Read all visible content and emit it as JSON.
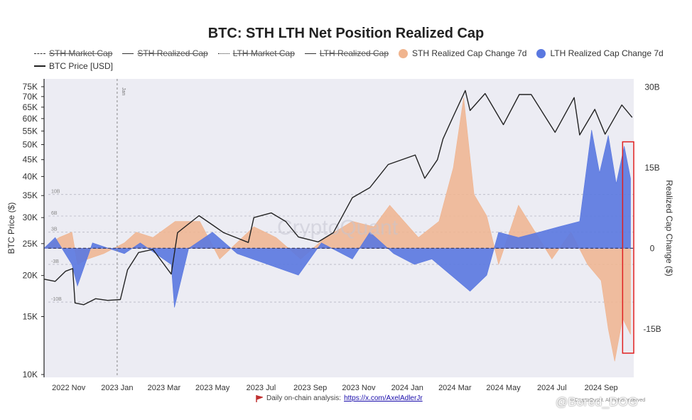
{
  "chart_data": {
    "type": "line",
    "title": "BTC: STH LTH Net Position Realized Cap",
    "ylabel_left": "BTC Price ($)",
    "ylabel_right": "Realized Cap Change ($)",
    "y_left_scale": "log",
    "y_left_ticks": [
      "10K",
      "15K",
      "20K",
      "25K",
      "30K",
      "35K",
      "40K",
      "45K",
      "50K",
      "55K",
      "60K",
      "65K",
      "70K",
      "75K"
    ],
    "y_left_tick_values": [
      10000,
      15000,
      20000,
      25000,
      30000,
      35000,
      40000,
      45000,
      50000,
      55000,
      60000,
      65000,
      70000,
      75000
    ],
    "y_right_ticks": [
      "-15B",
      "0",
      "15B",
      "30B"
    ],
    "y_right_tick_values": [
      -15,
      0,
      15,
      30
    ],
    "y_right_range": [
      -24,
      31.5
    ],
    "x_ticks": [
      "2022 Nov",
      "2023 Jan",
      "2023 Mar",
      "2023 May",
      "2023 Jul",
      "2023 Sep",
      "2023 Nov",
      "2024 Jan",
      "2024 Mar",
      "2024 May",
      "2024 Jul",
      "2024 Sep"
    ],
    "x_range": [
      "2022-10-01",
      "2024-10-12"
    ],
    "inner_grid_labels": [
      "10B",
      "6B",
      "3B",
      "-3B",
      "-10B"
    ],
    "inner_grid_values": [
      10,
      6,
      3,
      -3,
      -10
    ],
    "vline_date": "2023-01-01",
    "vline_label": "Jan",
    "legend": [
      {
        "label": "STH Market Cap",
        "style": "dash",
        "hidden": true
      },
      {
        "label": "STH Realized Cap",
        "style": "solid",
        "hidden": true
      },
      {
        "label": "LTH Market Cap",
        "style": "dot",
        "hidden": true
      },
      {
        "label": "LTH Realized Cap",
        "style": "solid",
        "hidden": true
      },
      {
        "label": "STH Realized Cap Change 7d",
        "style": "area",
        "color": "#f0b48e"
      },
      {
        "label": "LTH Realized Cap Change 7d",
        "style": "area",
        "color": "#5a78e0"
      },
      {
        "label": "BTC Price [USD]",
        "style": "solid",
        "color": "#222222"
      }
    ],
    "series": [
      {
        "name": "BTC Price [USD]",
        "color": "#222222",
        "points": [
          [
            "2022-10-01",
            19500
          ],
          [
            "2022-10-15",
            19200
          ],
          [
            "2022-10-28",
            20600
          ],
          [
            "2022-11-06",
            21000
          ],
          [
            "2022-11-09",
            16500
          ],
          [
            "2022-11-20",
            16300
          ],
          [
            "2022-12-05",
            17000
          ],
          [
            "2022-12-20",
            16800
          ],
          [
            "2023-01-05",
            16900
          ],
          [
            "2023-01-14",
            20800
          ],
          [
            "2023-01-28",
            23500
          ],
          [
            "2023-02-15",
            24000
          ],
          [
            "2023-03-10",
            20200
          ],
          [
            "2023-03-18",
            27000
          ],
          [
            "2023-04-14",
            30400
          ],
          [
            "2023-05-01",
            28500
          ],
          [
            "2023-05-15",
            27000
          ],
          [
            "2023-06-15",
            25200
          ],
          [
            "2023-06-22",
            30000
          ],
          [
            "2023-07-14",
            31000
          ],
          [
            "2023-08-01",
            29200
          ],
          [
            "2023-08-17",
            26200
          ],
          [
            "2023-09-11",
            25300
          ],
          [
            "2023-09-30",
            27000
          ],
          [
            "2023-10-24",
            34500
          ],
          [
            "2023-11-15",
            37000
          ],
          [
            "2023-12-08",
            43500
          ],
          [
            "2024-01-11",
            46500
          ],
          [
            "2024-01-23",
            39500
          ],
          [
            "2024-02-08",
            45000
          ],
          [
            "2024-02-15",
            52000
          ],
          [
            "2024-02-28",
            61000
          ],
          [
            "2024-03-14",
            73000
          ],
          [
            "2024-03-20",
            63500
          ],
          [
            "2024-04-08",
            71500
          ],
          [
            "2024-05-01",
            57500
          ],
          [
            "2024-05-21",
            71000
          ],
          [
            "2024-06-05",
            71000
          ],
          [
            "2024-07-05",
            54500
          ],
          [
            "2024-07-29",
            69500
          ],
          [
            "2024-08-05",
            53500
          ],
          [
            "2024-08-24",
            64000
          ],
          [
            "2024-09-06",
            53800
          ],
          [
            "2024-09-27",
            66000
          ],
          [
            "2024-10-10",
            60500
          ]
        ]
      },
      {
        "name": "STH Realized Cap Change 7d",
        "color": "#f0b48e",
        "points": [
          [
            "2022-10-01",
            0
          ],
          [
            "2022-10-20",
            2
          ],
          [
            "2022-11-05",
            3
          ],
          [
            "2022-11-12",
            -3
          ],
          [
            "2022-11-25",
            -2
          ],
          [
            "2022-12-15",
            -1
          ],
          [
            "2023-01-10",
            1
          ],
          [
            "2023-01-25",
            3
          ],
          [
            "2023-02-15",
            2
          ],
          [
            "2023-03-15",
            5
          ],
          [
            "2023-04-15",
            5
          ],
          [
            "2023-05-10",
            -2
          ],
          [
            "2023-06-22",
            4
          ],
          [
            "2023-07-20",
            2
          ],
          [
            "2023-08-20",
            -2
          ],
          [
            "2023-09-20",
            2
          ],
          [
            "2023-10-24",
            5
          ],
          [
            "2023-11-20",
            4
          ],
          [
            "2023-12-10",
            8
          ],
          [
            "2024-01-15",
            2
          ],
          [
            "2024-02-10",
            5
          ],
          [
            "2024-02-28",
            15
          ],
          [
            "2024-03-12",
            28
          ],
          [
            "2024-03-25",
            10
          ],
          [
            "2024-04-10",
            6
          ],
          [
            "2024-04-25",
            -3
          ],
          [
            "2024-05-20",
            8
          ],
          [
            "2024-06-10",
            3
          ],
          [
            "2024-07-01",
            -2
          ],
          [
            "2024-07-25",
            3
          ],
          [
            "2024-08-15",
            -3
          ],
          [
            "2024-09-01",
            -6
          ],
          [
            "2024-09-10",
            -15
          ],
          [
            "2024-09-18",
            -21
          ],
          [
            "2024-09-28",
            -13
          ],
          [
            "2024-10-08",
            -16
          ]
        ]
      },
      {
        "name": "LTH Realized Cap Change 7d",
        "color": "#5a78e0",
        "points": [
          [
            "2022-10-01",
            0
          ],
          [
            "2022-10-15",
            2
          ],
          [
            "2022-11-05",
            -3
          ],
          [
            "2022-11-12",
            -7
          ],
          [
            "2022-12-01",
            1
          ],
          [
            "2023-01-10",
            -1
          ],
          [
            "2023-01-30",
            1
          ],
          [
            "2023-03-10",
            -3
          ],
          [
            "2023-03-14",
            -11
          ],
          [
            "2023-04-01",
            0
          ],
          [
            "2023-05-01",
            3
          ],
          [
            "2023-06-01",
            -1
          ],
          [
            "2023-08-17",
            -5
          ],
          [
            "2023-09-15",
            1
          ],
          [
            "2023-10-24",
            -2
          ],
          [
            "2023-11-15",
            3
          ],
          [
            "2023-12-15",
            -1
          ],
          [
            "2024-01-10",
            -3
          ],
          [
            "2024-02-01",
            -2
          ],
          [
            "2024-03-20",
            -8
          ],
          [
            "2024-04-10",
            -5
          ],
          [
            "2024-04-25",
            3
          ],
          [
            "2024-05-20",
            2
          ],
          [
            "2024-06-15",
            3
          ],
          [
            "2024-07-10",
            4
          ],
          [
            "2024-08-05",
            5
          ],
          [
            "2024-08-20",
            22
          ],
          [
            "2024-08-30",
            14
          ],
          [
            "2024-09-10",
            21
          ],
          [
            "2024-09-20",
            12
          ],
          [
            "2024-09-30",
            19
          ],
          [
            "2024-10-08",
            13
          ]
        ]
      }
    ],
    "highlight_box_dates": [
      "2024-09-28",
      "2024-10-12"
    ]
  },
  "footer": {
    "text": "Daily on-chain analysis:",
    "link": "https://x.com/AxelAdlerJr"
  },
  "watermarks": {
    "center": "CryptoQuant",
    "corner": "© CryptoQuant. All rights reserved",
    "handle": "@Bored_DOG"
  }
}
